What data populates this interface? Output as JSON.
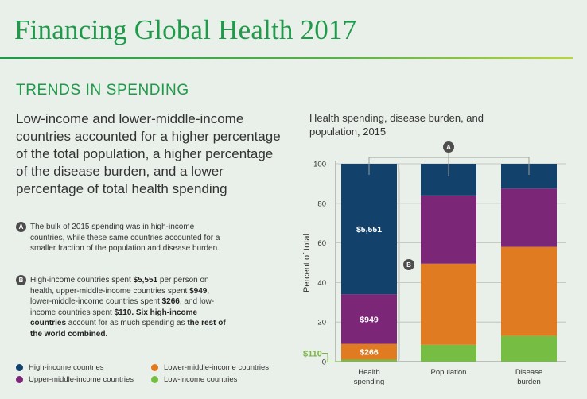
{
  "header": {
    "title": "Financing Global Health 2017",
    "section": "TRENDS IN SPENDING"
  },
  "lead": "Low-income and lower-middle-income countries accounted for a higher percentage of the total population, a higher percentage of the disease burden, and a lower percentage of total health spending",
  "notes": {
    "a": {
      "marker": "A",
      "text": "The bulk of 2015 spending was in high-income countries, while these same countries accounted for a smaller fraction of the population and disease burden."
    },
    "b": {
      "marker": "B",
      "t1": "High-income countries spent ",
      "v1": "$5,551",
      "t2": " per person on health, upper-middle-income countries spent ",
      "v2": "$949",
      "t3": ", lower-middle-income countries spent ",
      "v3": "$266",
      "t4": ", and low-income countries spent ",
      "v4": "$110. Six high-income countries",
      "t5": " account for as much spending as ",
      "v5": "the rest of the world combined."
    }
  },
  "legend": [
    {
      "label": "High-income countries",
      "color": "#12416b"
    },
    {
      "label": "Lower-middle-income countries",
      "color": "#e07b22"
    },
    {
      "label": "Upper-middle-income countries",
      "color": "#7b2677"
    },
    {
      "label": "Low-income countries",
      "color": "#76be43"
    }
  ],
  "chart_title": "Health spending, disease burden, and population, 2015",
  "chart_data": {
    "type": "bar",
    "stacked": true,
    "title": "Health spending, disease burden, and population, 2015",
    "xlabel": "",
    "ylabel": "Percent of total",
    "ylim": [
      0,
      100
    ],
    "yticks": [
      0,
      20,
      40,
      60,
      80,
      100
    ],
    "grid": true,
    "categories": [
      [
        "Health",
        "spending"
      ],
      [
        "Population"
      ],
      [
        "Disease",
        "burden"
      ]
    ],
    "series": [
      {
        "name": "Low-income countries",
        "color": "#76be43",
        "values": [
          1,
          8.5,
          13
        ]
      },
      {
        "name": "Lower-middle-income countries",
        "color": "#e07b22",
        "values": [
          8,
          41,
          45
        ]
      },
      {
        "name": "Upper-middle-income countries",
        "color": "#7b2677",
        "values": [
          25,
          34.5,
          29.5
        ]
      },
      {
        "name": "High-income countries",
        "color": "#12416b",
        "values": [
          66,
          16,
          12.5
        ]
      }
    ],
    "data_labels": [
      {
        "category": 0,
        "series": 3,
        "text": "$5,551"
      },
      {
        "category": 0,
        "series": 2,
        "text": "$949"
      },
      {
        "category": 0,
        "series": 1,
        "text": "$266"
      }
    ],
    "callout": "$110",
    "markers": [
      "A",
      "B"
    ]
  }
}
